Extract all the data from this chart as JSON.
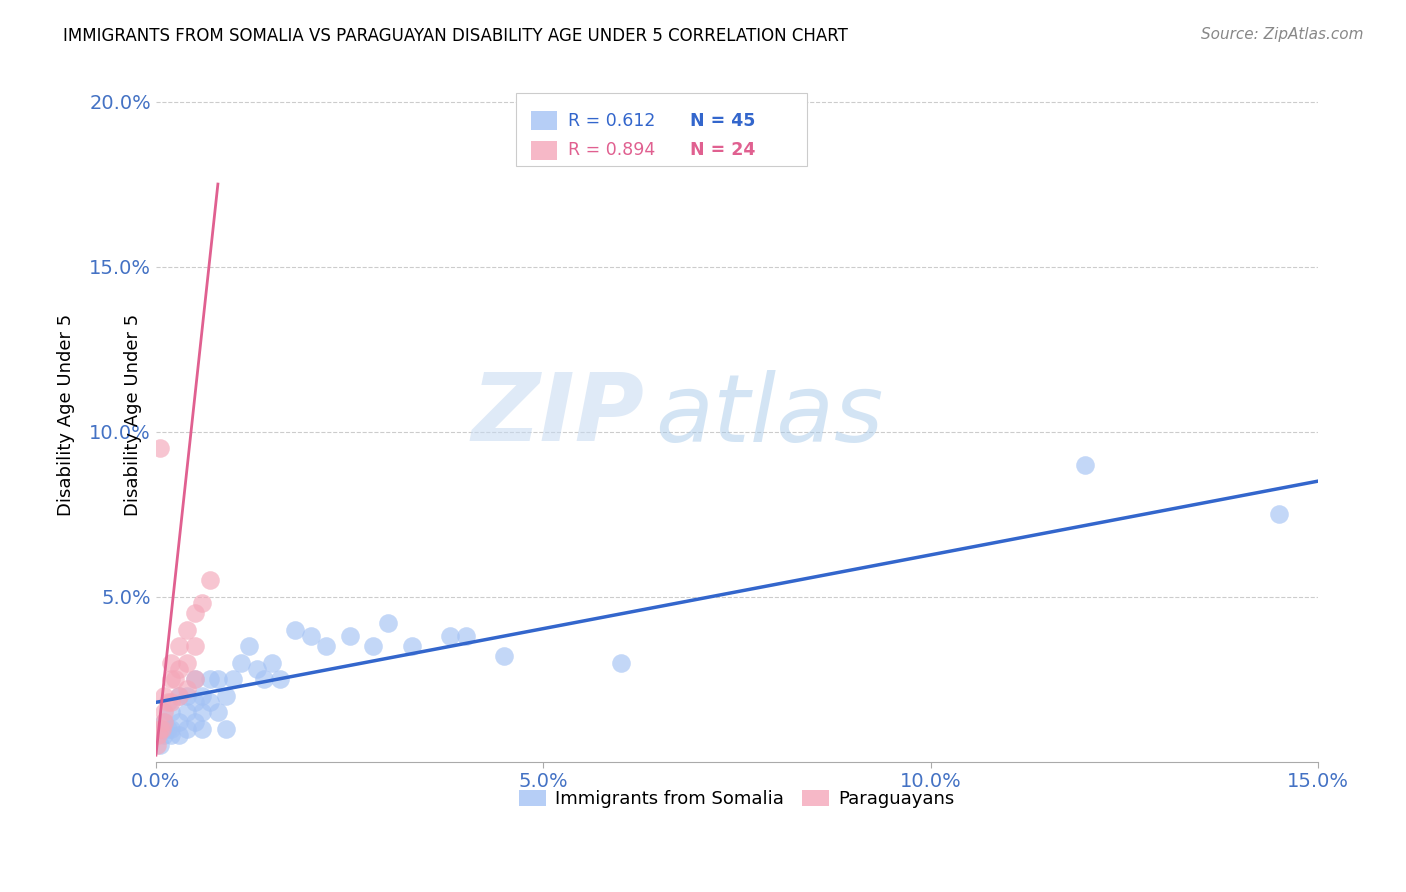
{
  "title": "IMMIGRANTS FROM SOMALIA VS PARAGUAYAN DISABILITY AGE UNDER 5 CORRELATION CHART",
  "source": "Source: ZipAtlas.com",
  "tick_color": "#4472c4",
  "ylabel": "Disability Age Under 5",
  "xlim": [
    0,
    0.15
  ],
  "ylim": [
    0,
    0.21
  ],
  "xticks": [
    0.0,
    0.05,
    0.1,
    0.15
  ],
  "yticks": [
    0.05,
    0.1,
    0.15,
    0.2
  ],
  "xtick_labels": [
    "0.0%",
    "5.0%",
    "10.0%",
    "15.0%"
  ],
  "ytick_labels": [
    "5.0%",
    "10.0%",
    "15.0%",
    "20.0%"
  ],
  "series1_color": "#a4c2f4",
  "series2_color": "#f4a7b9",
  "line1_color": "#3366cc",
  "line2_color": "#e06090",
  "legend_r1": "R = 0.612",
  "legend_n1": "N = 45",
  "legend_r2": "R = 0.894",
  "legend_n2": "N = 24",
  "watermark1": "ZIP",
  "watermark2": "atlas",
  "background_color": "#ffffff",
  "series1_x": [
    0.0005,
    0.001,
    0.001,
    0.0015,
    0.002,
    0.002,
    0.002,
    0.003,
    0.003,
    0.003,
    0.004,
    0.004,
    0.004,
    0.005,
    0.005,
    0.005,
    0.006,
    0.006,
    0.006,
    0.007,
    0.007,
    0.008,
    0.008,
    0.009,
    0.009,
    0.01,
    0.011,
    0.012,
    0.013,
    0.014,
    0.015,
    0.016,
    0.018,
    0.02,
    0.022,
    0.025,
    0.028,
    0.03,
    0.033,
    0.038,
    0.04,
    0.045,
    0.06,
    0.12,
    0.145
  ],
  "series1_y": [
    0.005,
    0.008,
    0.012,
    0.01,
    0.01,
    0.015,
    0.008,
    0.012,
    0.02,
    0.008,
    0.015,
    0.01,
    0.02,
    0.025,
    0.018,
    0.012,
    0.02,
    0.015,
    0.01,
    0.025,
    0.018,
    0.025,
    0.015,
    0.02,
    0.01,
    0.025,
    0.03,
    0.035,
    0.028,
    0.025,
    0.03,
    0.025,
    0.04,
    0.038,
    0.035,
    0.038,
    0.035,
    0.042,
    0.035,
    0.038,
    0.038,
    0.032,
    0.03,
    0.09,
    0.075
  ],
  "series2_x": [
    0.0002,
    0.0003,
    0.0005,
    0.0008,
    0.001,
    0.001,
    0.001,
    0.0015,
    0.002,
    0.002,
    0.002,
    0.0025,
    0.003,
    0.003,
    0.003,
    0.004,
    0.004,
    0.004,
    0.005,
    0.005,
    0.005,
    0.006,
    0.007,
    0.0005
  ],
  "series2_y": [
    0.005,
    0.008,
    0.01,
    0.01,
    0.015,
    0.012,
    0.02,
    0.018,
    0.025,
    0.03,
    0.018,
    0.025,
    0.035,
    0.028,
    0.02,
    0.04,
    0.03,
    0.022,
    0.045,
    0.035,
    0.025,
    0.048,
    0.055,
    0.095
  ],
  "line1_x0": 0.0,
  "line1_y0": 0.018,
  "line1_x1": 0.15,
  "line1_y1": 0.085,
  "line2_x0": 0.0,
  "line2_y0": 0.002,
  "line2_x1": 0.008,
  "line2_y1": 0.175
}
